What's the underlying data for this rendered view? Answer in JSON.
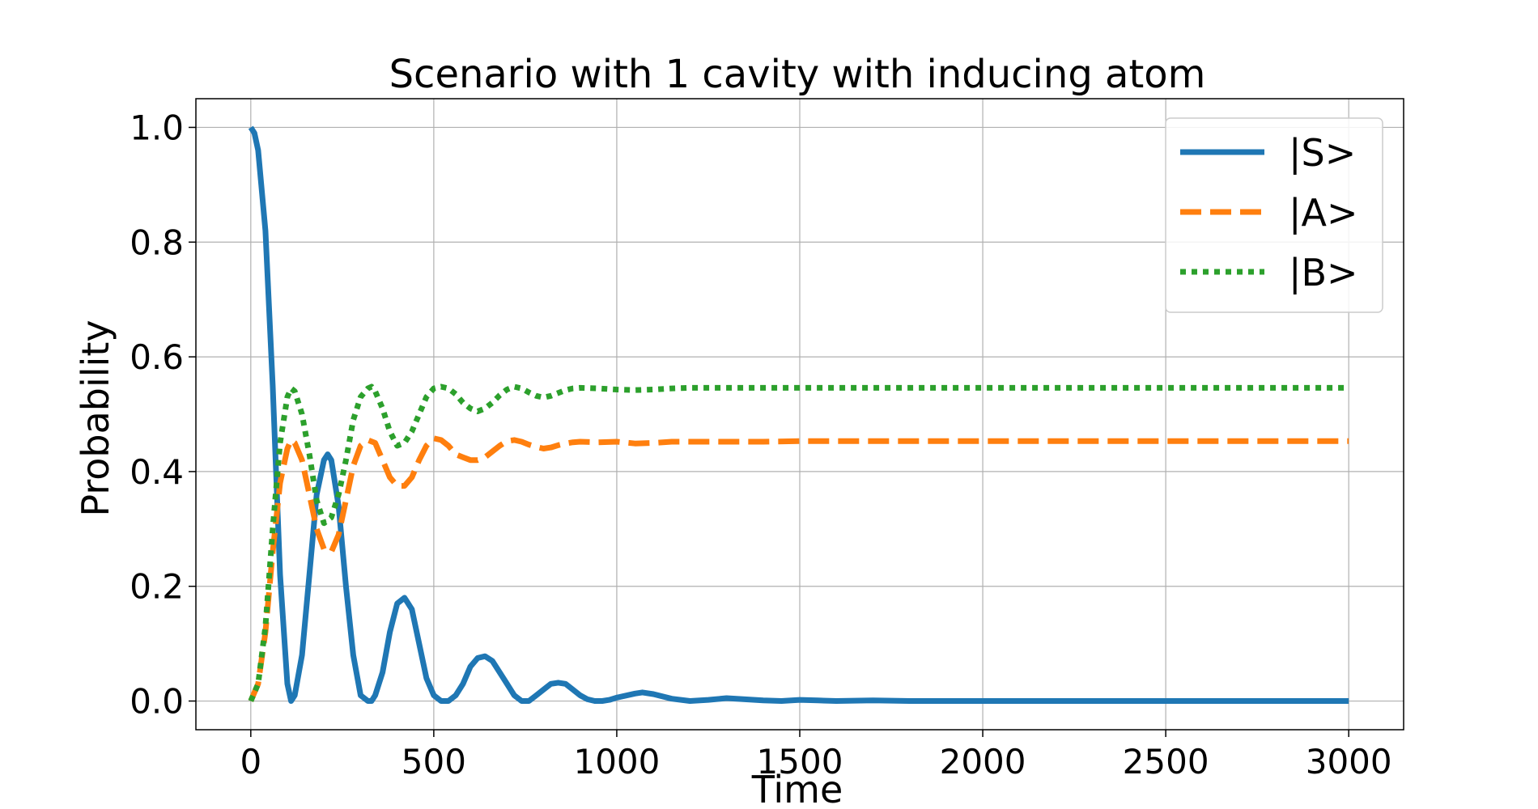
{
  "chart_data": {
    "type": "line",
    "title": "Scenario with 1 cavity with inducing atom",
    "xlabel": "Time",
    "ylabel": "Probability",
    "xlim": [
      -150,
      3150
    ],
    "ylim": [
      -0.05,
      1.05
    ],
    "xticks": [
      0,
      500,
      1000,
      1500,
      2000,
      2500,
      3000
    ],
    "xtick_labels": [
      "0",
      "500",
      "1000",
      "1500",
      "2000",
      "2500",
      "3000"
    ],
    "yticks": [
      0.0,
      0.2,
      0.4,
      0.6,
      0.8,
      1.0
    ],
    "ytick_labels": [
      "0.0",
      "0.2",
      "0.4",
      "0.6",
      "0.8",
      "1.0"
    ],
    "grid": true,
    "legend_position": "top-right",
    "series": [
      {
        "name": "|S>",
        "color": "#1f77b4",
        "style": "solid",
        "x": [
          0,
          10,
          20,
          40,
          60,
          80,
          100,
          110,
          120,
          140,
          160,
          180,
          200,
          210,
          220,
          240,
          260,
          280,
          300,
          320,
          330,
          340,
          360,
          380,
          400,
          420,
          440,
          460,
          480,
          500,
          520,
          540,
          560,
          580,
          600,
          620,
          640,
          660,
          680,
          700,
          720,
          740,
          760,
          780,
          800,
          820,
          840,
          860,
          880,
          900,
          920,
          940,
          960,
          980,
          1000,
          1050,
          1070,
          1100,
          1150,
          1200,
          1250,
          1300,
          1350,
          1400,
          1450,
          1500,
          1550,
          1600,
          1700,
          1800,
          2000,
          2500,
          3000
        ],
        "y": [
          1.0,
          0.99,
          0.96,
          0.82,
          0.55,
          0.22,
          0.03,
          0.0,
          0.01,
          0.08,
          0.22,
          0.36,
          0.42,
          0.43,
          0.42,
          0.34,
          0.2,
          0.08,
          0.01,
          0.0,
          0.0,
          0.01,
          0.05,
          0.12,
          0.17,
          0.18,
          0.16,
          0.1,
          0.04,
          0.01,
          0.0,
          0.0,
          0.01,
          0.03,
          0.06,
          0.075,
          0.078,
          0.07,
          0.05,
          0.03,
          0.01,
          0.0,
          0.0,
          0.01,
          0.02,
          0.03,
          0.032,
          0.03,
          0.02,
          0.01,
          0.003,
          0.0,
          0.0,
          0.002,
          0.006,
          0.013,
          0.015,
          0.012,
          0.004,
          0.0,
          0.002,
          0.005,
          0.003,
          0.001,
          0.0,
          0.002,
          0.001,
          0.0,
          0.001,
          0.0,
          0.0,
          0.0,
          0.0
        ]
      },
      {
        "name": "|A>",
        "color": "#ff7f0e",
        "style": "dashed",
        "x": [
          0,
          20,
          40,
          60,
          80,
          100,
          110,
          120,
          140,
          160,
          180,
          200,
          220,
          240,
          260,
          280,
          300,
          320,
          340,
          360,
          380,
          400,
          420,
          440,
          460,
          480,
          500,
          520,
          540,
          560,
          580,
          600,
          620,
          640,
          660,
          680,
          700,
          720,
          740,
          760,
          780,
          800,
          820,
          840,
          860,
          880,
          900,
          950,
          1000,
          1050,
          1100,
          1150,
          1200,
          1300,
          1400,
          1500,
          2000,
          2500,
          3000
        ],
        "y": [
          0.0,
          0.03,
          0.12,
          0.26,
          0.38,
          0.44,
          0.455,
          0.45,
          0.42,
          0.36,
          0.3,
          0.265,
          0.26,
          0.29,
          0.35,
          0.41,
          0.445,
          0.455,
          0.45,
          0.42,
          0.39,
          0.375,
          0.375,
          0.39,
          0.42,
          0.445,
          0.458,
          0.455,
          0.445,
          0.43,
          0.425,
          0.42,
          0.42,
          0.425,
          0.435,
          0.445,
          0.453,
          0.455,
          0.452,
          0.447,
          0.443,
          0.44,
          0.442,
          0.446,
          0.449,
          0.451,
          0.452,
          0.451,
          0.452,
          0.449,
          0.45,
          0.452,
          0.452,
          0.452,
          0.452,
          0.453,
          0.453,
          0.453,
          0.453
        ]
      },
      {
        "name": "|B>",
        "color": "#2ca02c",
        "style": "dotted",
        "x": [
          0,
          20,
          40,
          60,
          80,
          100,
          110,
          120,
          140,
          160,
          180,
          200,
          220,
          240,
          260,
          280,
          300,
          320,
          330,
          340,
          360,
          380,
          400,
          420,
          440,
          460,
          480,
          500,
          520,
          540,
          560,
          580,
          600,
          620,
          640,
          660,
          680,
          700,
          720,
          740,
          760,
          780,
          800,
          820,
          840,
          860,
          880,
          900,
          950,
          1000,
          1050,
          1100,
          1150,
          1200,
          1300,
          1400,
          1500,
          2000,
          2500,
          3000
        ],
        "y": [
          0.0,
          0.03,
          0.13,
          0.3,
          0.45,
          0.53,
          0.545,
          0.54,
          0.5,
          0.43,
          0.35,
          0.31,
          0.32,
          0.36,
          0.42,
          0.49,
          0.53,
          0.545,
          0.548,
          0.54,
          0.51,
          0.47,
          0.445,
          0.45,
          0.47,
          0.5,
          0.53,
          0.545,
          0.548,
          0.545,
          0.535,
          0.52,
          0.51,
          0.505,
          0.51,
          0.52,
          0.533,
          0.543,
          0.548,
          0.545,
          0.538,
          0.532,
          0.529,
          0.532,
          0.537,
          0.542,
          0.545,
          0.546,
          0.545,
          0.543,
          0.542,
          0.543,
          0.545,
          0.546,
          0.546,
          0.546,
          0.546,
          0.546,
          0.546,
          0.546
        ]
      }
    ]
  }
}
